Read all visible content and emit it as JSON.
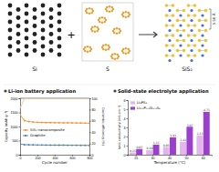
{
  "diagram": {
    "labels": [
      "Si",
      "S",
      "SiS₂"
    ],
    "operator": "+",
    "distance": "5.56 Å"
  },
  "chart_data": [
    {
      "type": "line",
      "title": "Li-ion battery application",
      "x_label": "Cycle number",
      "y_label": "Capacity (mAh g⁻¹)",
      "y2_label": "Coulombic efficiency (%)",
      "x": [
        0,
        50,
        100,
        150,
        200,
        250,
        300,
        350,
        400,
        450,
        500,
        550,
        600,
        650,
        700,
        750,
        800
      ],
      "series": [
        {
          "name": "SiS₂ nanocomposite",
          "color": "#f28e2b",
          "marker": "circle",
          "values": [
            1420,
            1210,
            1175,
            1160,
            1150,
            1145,
            1140,
            1140,
            1135,
            1135,
            1130,
            1130,
            1128,
            1125,
            1125,
            1120,
            1120
          ]
        },
        {
          "name": "Graphite",
          "color": "#4e79a7",
          "marker": "circle",
          "values": [
            380,
            355,
            350,
            348,
            345,
            345,
            342,
            340,
            340,
            338,
            338,
            336,
            335,
            335,
            333,
            332,
            330
          ]
        },
        {
          "color": "#f8c99a",
          "axis": "y2",
          "values": [
            82,
            99.2,
            99.5,
            99.6,
            99.6,
            99.7,
            99.7,
            99.7,
            99.8,
            99.8,
            99.8,
            99.8,
            99.8,
            99.8,
            99.8,
            99.8,
            99.8
          ]
        }
      ],
      "xlim": [
        0,
        800
      ],
      "xticks": [
        0,
        200,
        400,
        600,
        800
      ],
      "ylim": [
        0,
        2000
      ],
      "yticks": [
        0,
        500,
        1000,
        1500,
        2000
      ],
      "y2lim": [
        0,
        100
      ],
      "y2ticks": [
        0,
        20,
        40,
        60,
        80,
        100
      ],
      "legend": "center left"
    },
    {
      "type": "bar",
      "title": "Solid-state electrolyte application",
      "x_label": "Temperature (°C)",
      "y_label": "Ionic conductivity (mS cm⁻¹)",
      "categories": [
        "25",
        "30",
        "40",
        "50",
        "60"
      ],
      "series": [
        {
          "name": "Li₃PS₄",
          "color": "#e3b5ee",
          "values": [
            0.25,
            0.49,
            0.85,
            1.42,
            2.13
          ]
        },
        {
          "name": "Li₃.₁P₀.₉Si₀.₁S₄",
          "color": "#9c3fcf",
          "values": [
            0.63,
            1.11,
            1.91,
            3.07,
            4.71
          ]
        }
      ],
      "ylim": [
        0,
        6
      ],
      "yticks": [
        0,
        1,
        2,
        3,
        4,
        5,
        6
      ],
      "data_labels": true,
      "legend": "upper left"
    }
  ]
}
